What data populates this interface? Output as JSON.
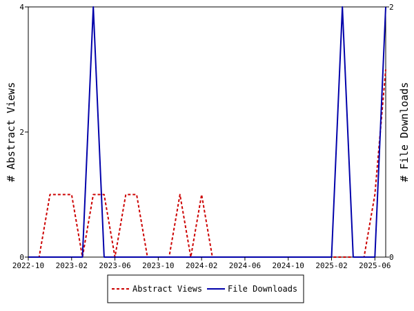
{
  "chart_data": {
    "type": "line",
    "x": [
      "2022-10",
      "2022-11",
      "2022-12",
      "2023-01",
      "2023-02",
      "2023-03",
      "2023-04",
      "2023-05",
      "2023-06",
      "2023-07",
      "2023-08",
      "2023-09",
      "2023-10",
      "2023-11",
      "2023-12",
      "2024-01",
      "2024-02",
      "2024-03",
      "2024-04",
      "2024-05",
      "2024-06",
      "2024-07",
      "2024-08",
      "2024-09",
      "2024-10",
      "2024-11",
      "2024-12",
      "2025-01",
      "2025-02",
      "2025-03",
      "2025-04",
      "2025-05",
      "2025-06",
      "2025-07"
    ],
    "x_tick_labels": [
      "2022-10",
      "2023-02",
      "2023-06",
      "2023-10",
      "2024-02",
      "2024-06",
      "2024-10",
      "2025-02",
      "2025-06"
    ],
    "series": [
      {
        "name": "Abstract Views",
        "axis": "left",
        "color": "#cc0000",
        "style": "dashed",
        "values": [
          0,
          0,
          1,
          1,
          1,
          0,
          1,
          1,
          0,
          1,
          1,
          0,
          0,
          0,
          1,
          0,
          1,
          0,
          0,
          0,
          0,
          0,
          0,
          0,
          0,
          0,
          0,
          0,
          0,
          0,
          0,
          0,
          1,
          3
        ]
      },
      {
        "name": "File Downloads",
        "axis": "right",
        "color": "#0000aa",
        "style": "solid",
        "values": [
          0,
          0,
          0,
          0,
          0,
          0,
          2,
          0,
          0,
          0,
          0,
          0,
          0,
          0,
          0,
          0,
          0,
          0,
          0,
          0,
          0,
          0,
          0,
          0,
          0,
          0,
          0,
          0,
          0,
          2,
          0,
          0,
          0,
          2
        ]
      }
    ],
    "ylabel": "# Abstract Views",
    "y2label": "# File Downloads",
    "ylim": [
      0,
      4
    ],
    "y2lim": [
      0,
      2
    ],
    "yticks": [
      0,
      2,
      4
    ],
    "y2ticks": [
      0,
      2
    ],
    "grid": false,
    "legend_position": "bottom-center"
  }
}
